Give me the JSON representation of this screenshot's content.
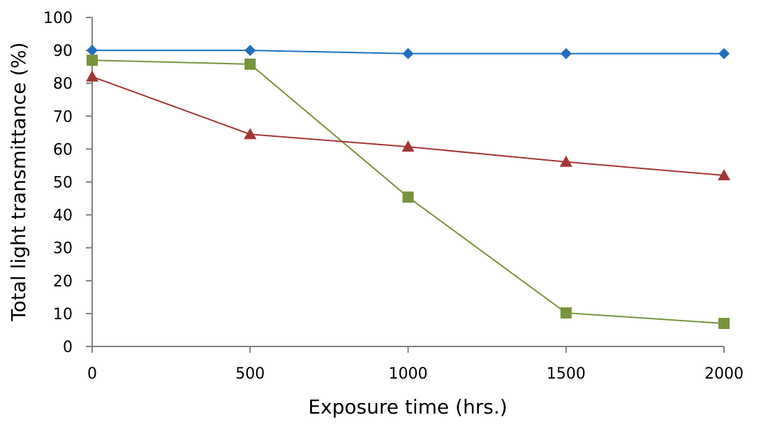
{
  "chart_data": {
    "type": "line",
    "title": "",
    "xlabel": "Exposure time (hrs.)",
    "ylabel": "Total light transmittance (%)",
    "xlim": [
      0,
      2000
    ],
    "ylim": [
      0,
      100
    ],
    "x_ticks": [
      0,
      500,
      1000,
      1500,
      2000
    ],
    "y_ticks": [
      0,
      10,
      20,
      30,
      40,
      50,
      60,
      70,
      80,
      90,
      100
    ],
    "grid": false,
    "x": [
      0,
      500,
      1000,
      1500,
      2000
    ],
    "series": [
      {
        "values": [
          90,
          90,
          89,
          89,
          89
        ],
        "color": "#1f6fc0",
        "marker": "diamond"
      },
      {
        "values": [
          87,
          85.8,
          45.4,
          10.2,
          7.0
        ],
        "color": "#77933c",
        "marker": "square"
      },
      {
        "values": [
          82,
          64.5,
          60.7,
          56.1,
          52.0
        ],
        "color": "#a33634",
        "marker": "triangle"
      }
    ]
  }
}
